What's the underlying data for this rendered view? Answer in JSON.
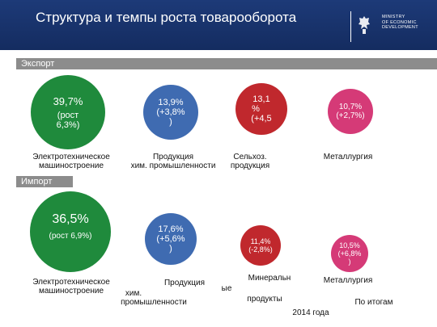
{
  "header": {
    "title": "Структура и темпы роста товарооборота",
    "ministry": [
      "MINISTRY",
      "OF ECONOMIC",
      "DEVELOPMENT"
    ]
  },
  "export": {
    "label": "Экспорт",
    "items": [
      {
        "pct": "39,7%",
        "growth_line1": "(рост",
        "growth_line2": "6,3%)",
        "label_line1": "Электротехническое",
        "label_line2": "машиностроение",
        "color": "#1f8a3c"
      },
      {
        "pct": "13,9%",
        "growth_line1": "(+3,8%",
        "growth_line2": ")",
        "label_line1": "Продукция",
        "label_line2": "хим. промышленности",
        "color": "#3f6bb1"
      },
      {
        "pct_line1": "13,1",
        "pct_line2": "%",
        "growth_line1": "(+4,5",
        "label_line1": "Сельхоз.",
        "label_line2": "продукция",
        "color": "#c0282d"
      },
      {
        "pct": "10,7%",
        "growth_line1": "(+2,7%)",
        "label_line1": "Металлургия",
        "color": "#d53a77"
      }
    ]
  },
  "import": {
    "label": "Импорт",
    "items": [
      {
        "pct": "36,5%",
        "growth_line1": "(рост 6,9%)",
        "label_line1": "Электротехническое",
        "label_line2": "машиностроение",
        "color": "#1f8a3c"
      },
      {
        "pct": "17,6%",
        "growth_line1": "(+5,6%",
        "growth_line2": ")",
        "label_line1": "Продукция",
        "label_line2": "хим.",
        "label_line3": "промышленности",
        "color": "#3f6bb1"
      },
      {
        "pct": "11,4%",
        "growth_line1": "(-2,8%)",
        "label_line1": "Минеральн",
        "label_line2": "ые",
        "label_line3": "продукты",
        "color": "#c0282d"
      },
      {
        "pct": "10,5%",
        "growth_line1": "(+6,8%",
        "growth_line2": ")",
        "label_line1": "Металлургия",
        "color": "#d53a77"
      }
    ]
  },
  "footnote": {
    "line1": "По итогам",
    "line2": "2014 года"
  }
}
